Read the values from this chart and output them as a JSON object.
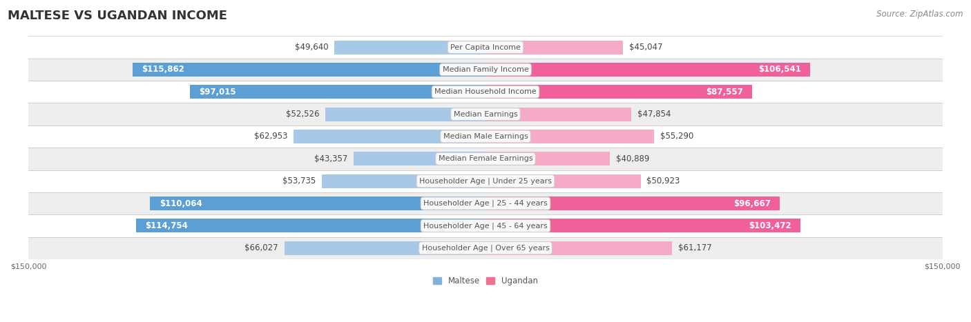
{
  "title": "MALTESE VS UGANDAN INCOME",
  "source": "Source: ZipAtlas.com",
  "categories": [
    "Per Capita Income",
    "Median Family Income",
    "Median Household Income",
    "Median Earnings",
    "Median Male Earnings",
    "Median Female Earnings",
    "Householder Age | Under 25 years",
    "Householder Age | 25 - 44 years",
    "Householder Age | 45 - 64 years",
    "Householder Age | Over 65 years"
  ],
  "maltese_values": [
    49640,
    115862,
    97015,
    52526,
    62953,
    43357,
    53735,
    110064,
    114754,
    66027
  ],
  "ugandan_values": [
    45047,
    106541,
    87557,
    47854,
    55290,
    40889,
    50923,
    96667,
    103472,
    61177
  ],
  "maltese_labels": [
    "$49,640",
    "$115,862",
    "$97,015",
    "$52,526",
    "$62,953",
    "$43,357",
    "$53,735",
    "$110,064",
    "$114,754",
    "$66,027"
  ],
  "ugandan_labels": [
    "$45,047",
    "$106,541",
    "$87,557",
    "$47,854",
    "$55,290",
    "$40,889",
    "$50,923",
    "$96,667",
    "$103,472",
    "$61,177"
  ],
  "maltese_color_light": "#a8c8e8",
  "maltese_color_dark": "#5b9fd4",
  "ugandan_color_light": "#f5aac8",
  "ugandan_color_dark": "#f0609a",
  "maltese_legend_color": "#7fb3d9",
  "ugandan_legend_color": "#f07090",
  "max_value": 150000,
  "bg_color": "#ffffff",
  "row_bg_shaded": "#eeeeee",
  "row_bg_white": "#ffffff",
  "label_box_color": "#f8f8f8",
  "label_box_edge": "#cccccc",
  "title_fontsize": 13,
  "source_fontsize": 8.5,
  "bar_label_fontsize": 8.5,
  "category_fontsize": 8,
  "axis_label_fontsize": 8,
  "inside_label_threshold": 80000
}
